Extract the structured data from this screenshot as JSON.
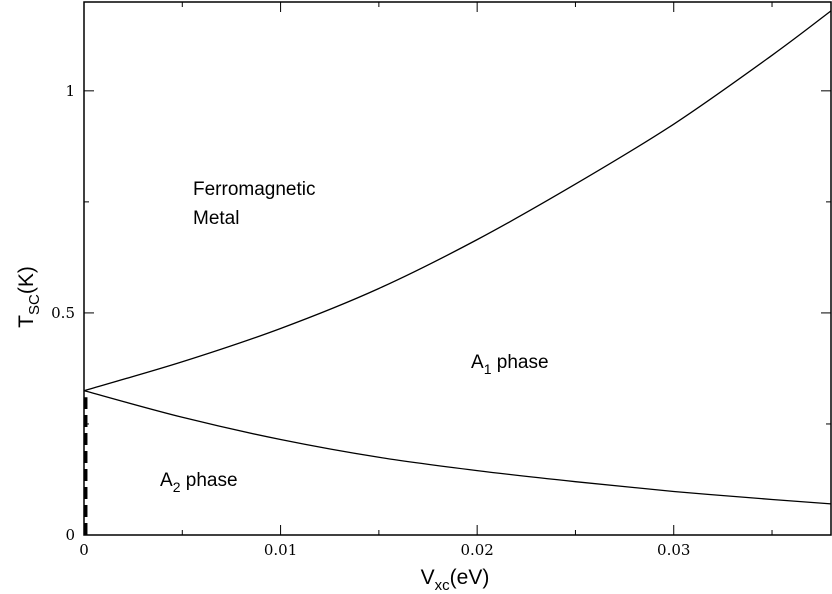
{
  "chart_data": {
    "type": "line",
    "xlabel": {
      "main": "V",
      "sub": "xc",
      "suffix": "(eV)"
    },
    "ylabel": {
      "main": "T",
      "sub": "SC",
      "suffix": "(K)"
    },
    "xlim": [
      0,
      0.038
    ],
    "ylim": [
      0,
      1.2
    ],
    "x_ticks": [
      0,
      0.01,
      0.02,
      0.03
    ],
    "x_tick_labels": [
      "0",
      "0.01",
      "0.02",
      "0.03"
    ],
    "y_ticks": [
      0,
      0.5,
      1
    ],
    "y_tick_labels": [
      "0",
      "0.5",
      "1"
    ],
    "grid": false,
    "legend": "none",
    "series": [
      {
        "style": "solid",
        "x": [
          0,
          0.005,
          0.01,
          0.015,
          0.02,
          0.025,
          0.03,
          0.035,
          0.038
        ],
        "y": [
          0.325,
          0.39,
          0.465,
          0.555,
          0.665,
          0.79,
          0.925,
          1.08,
          1.18
        ]
      },
      {
        "style": "solid",
        "x": [
          0,
          0.005,
          0.01,
          0.015,
          0.02,
          0.025,
          0.03,
          0.035,
          0.038
        ],
        "y": [
          0.325,
          0.265,
          0.215,
          0.175,
          0.145,
          0.12,
          0.098,
          0.08,
          0.07
        ]
      },
      {
        "style": "dashed",
        "x": [
          0.0001,
          0.0001
        ],
        "y": [
          0,
          0.31
        ]
      }
    ],
    "annotations": [
      {
        "id": "ferromagnetic",
        "lines": [
          "Ferromagnetic",
          "Metal"
        ]
      },
      {
        "id": "a1",
        "main": "A",
        "sub": "1",
        "suffix": " phase"
      },
      {
        "id": "a2",
        "main": "A",
        "sub": "2",
        "suffix": " phase"
      }
    ]
  }
}
